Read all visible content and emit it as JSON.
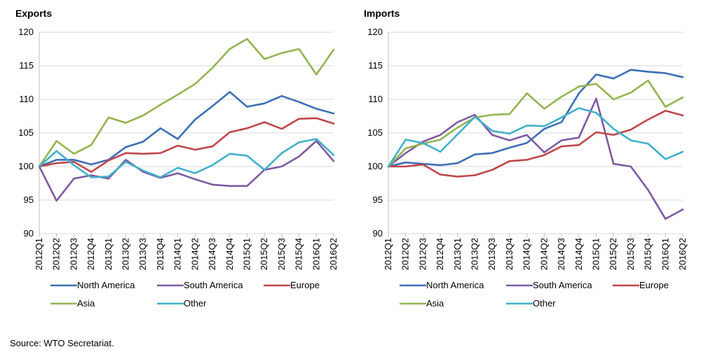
{
  "source_text": "Source: WTO Secretariat.",
  "colors": {
    "North America": "#3b6fb6",
    "South America": "#7e5aa2",
    "Europe": "#c0464a",
    "Asia": "#92b550",
    "Other": "#3fb0cc"
  },
  "chart_data": [
    {
      "type": "line",
      "title": "Exports",
      "xlabel": "",
      "ylabel": "",
      "ylim": [
        90,
        120
      ],
      "yticks": [
        90,
        95,
        100,
        105,
        110,
        115,
        120
      ],
      "grid": true,
      "legend_position": "bottom",
      "categories": [
        "2012Q1",
        "2012Q2",
        "2012Q3",
        "2012Q4",
        "2013Q1",
        "2013Q2",
        "2013Q3",
        "2013Q4",
        "2014Q1",
        "2014Q2",
        "2014Q3",
        "2014Q4",
        "2015Q1",
        "2015Q2",
        "2015Q3",
        "2015Q4",
        "2016Q1",
        "2016Q2"
      ],
      "series": [
        {
          "name": "North America",
          "values": [
            100,
            101,
            101,
            100.3,
            101,
            102.9,
            103.7,
            105.7,
            104.1,
            107,
            109,
            111.1,
            108.9,
            109.4,
            110.5,
            109.6,
            108.6,
            107.9
          ]
        },
        {
          "name": "South America",
          "values": [
            100,
            94.9,
            98.2,
            98.7,
            98.2,
            101,
            99.2,
            98.3,
            99,
            98.1,
            97.3,
            97.1,
            97.1,
            99.5,
            100,
            101.5,
            103.8,
            100.8
          ]
        },
        {
          "name": "Europe",
          "values": [
            100,
            100.5,
            100.7,
            99.2,
            100.9,
            102,
            101.9,
            102,
            103.1,
            102.5,
            103,
            105.1,
            105.7,
            106.6,
            105.6,
            107.1,
            107.2,
            106.4
          ]
        },
        {
          "name": "Asia",
          "values": [
            100,
            103.8,
            101.9,
            103.2,
            107.3,
            106.5,
            107.6,
            109.2,
            110.7,
            112.3,
            114.7,
            117.5,
            119,
            116,
            116.9,
            117.5,
            113.7,
            117.4
          ]
        },
        {
          "name": "Other",
          "values": [
            100,
            102.3,
            100.2,
            98.4,
            98.5,
            100.7,
            99.4,
            98.4,
            99.8,
            99,
            100.2,
            101.9,
            101.6,
            99.5,
            102,
            103.6,
            104.1,
            101.7
          ]
        }
      ]
    },
    {
      "type": "line",
      "title": "Imports",
      "xlabel": "",
      "ylabel": "",
      "ylim": [
        90,
        120
      ],
      "yticks": [
        90,
        95,
        100,
        105,
        110,
        115,
        120
      ],
      "grid": true,
      "legend_position": "bottom",
      "categories": [
        "2012Q1",
        "2012Q2",
        "2012Q3",
        "2012Q4",
        "2013Q1",
        "2013Q2",
        "2013Q3",
        "2013Q4",
        "2014Q1",
        "2014Q2",
        "2014Q3",
        "2014Q4",
        "2015Q1",
        "2015Q2",
        "2015Q3",
        "2015Q4",
        "2016Q1",
        "2016Q2"
      ],
      "series": [
        {
          "name": "North America",
          "values": [
            100,
            100.6,
            100.4,
            100.2,
            100.5,
            101.8,
            102,
            102.8,
            103.5,
            105.6,
            106.6,
            110.9,
            113.7,
            113.1,
            114.4,
            114.1,
            113.9,
            113.3
          ]
        },
        {
          "name": "South America",
          "values": [
            100,
            102,
            103.7,
            104.7,
            106.6,
            107.7,
            104.7,
            103.9,
            104.7,
            102.1,
            103.9,
            104.3,
            110.1,
            100.4,
            100,
            96.5,
            92.2,
            93.6
          ]
        },
        {
          "name": "Europe",
          "values": [
            100,
            100,
            100.3,
            98.8,
            98.5,
            98.7,
            99.5,
            100.8,
            101,
            101.7,
            103,
            103.2,
            105.1,
            104.7,
            105.5,
            107,
            108.3,
            107.6
          ]
        },
        {
          "name": "Asia",
          "values": [
            100,
            102.7,
            103.4,
            104,
            105.8,
            107.3,
            107.7,
            107.8,
            110.9,
            108.6,
            110.4,
            111.9,
            112.3,
            110,
            111,
            112.8,
            108.9,
            110.3
          ]
        },
        {
          "name": "Other",
          "values": [
            100,
            104,
            103.5,
            102.2,
            104.8,
            107.4,
            105.3,
            104.9,
            106.1,
            106,
            107.3,
            108.7,
            108,
            105.6,
            103.9,
            103.4,
            101.1,
            102.2
          ]
        }
      ]
    }
  ]
}
